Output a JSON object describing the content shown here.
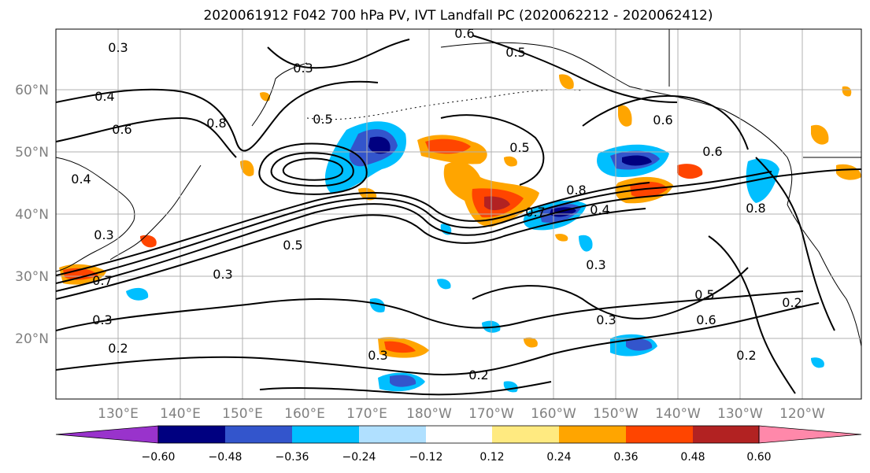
{
  "title": "2020061912 F042 700 hPa PV, IVT Landfall PC (2020062212 - 2020062412)",
  "lat_labels": [
    "60°N",
    "50°N",
    "40°N",
    "30°N",
    "20°N"
  ],
  "lon_labels": [
    "130°E",
    "140°E",
    "150°E",
    "160°E",
    "170°E",
    "180°W",
    "170°W",
    "160°W",
    "150°W",
    "140°W",
    "130°W",
    "120°W"
  ],
  "colorbar": {
    "ticks": [
      "−0.60",
      "−0.48",
      "−0.36",
      "−0.24",
      "−0.12",
      "0.12",
      "0.24",
      "0.36",
      "0.48",
      "0.60"
    ],
    "colors": [
      "#9933cc",
      "#000080",
      "#3355cc",
      "#00bfff",
      "#b0e0ff",
      "#ffffff",
      "#ffea80",
      "#ffa500",
      "#ff4500",
      "#b22222",
      "#ff88aa"
    ]
  },
  "contour_labels": [
    "0.3",
    "0.6",
    "0.5",
    "0.3",
    "0.4",
    "0.5",
    "0.6",
    "0.8",
    "0.4",
    "0.3",
    "0.5",
    "0.7",
    "0.3",
    "0.3",
    "0.2",
    "0.5",
    "0.6",
    "0.8",
    "0.4",
    "0.3",
    "0.2",
    "0.8",
    "0.6",
    "0.5",
    "0.3",
    "0.6",
    "0.2",
    "0.3",
    "0.2",
    "0.7"
  ],
  "colors": {
    "land_border": "#000000",
    "grid": "#b0b0b0",
    "contour": "#000000"
  }
}
